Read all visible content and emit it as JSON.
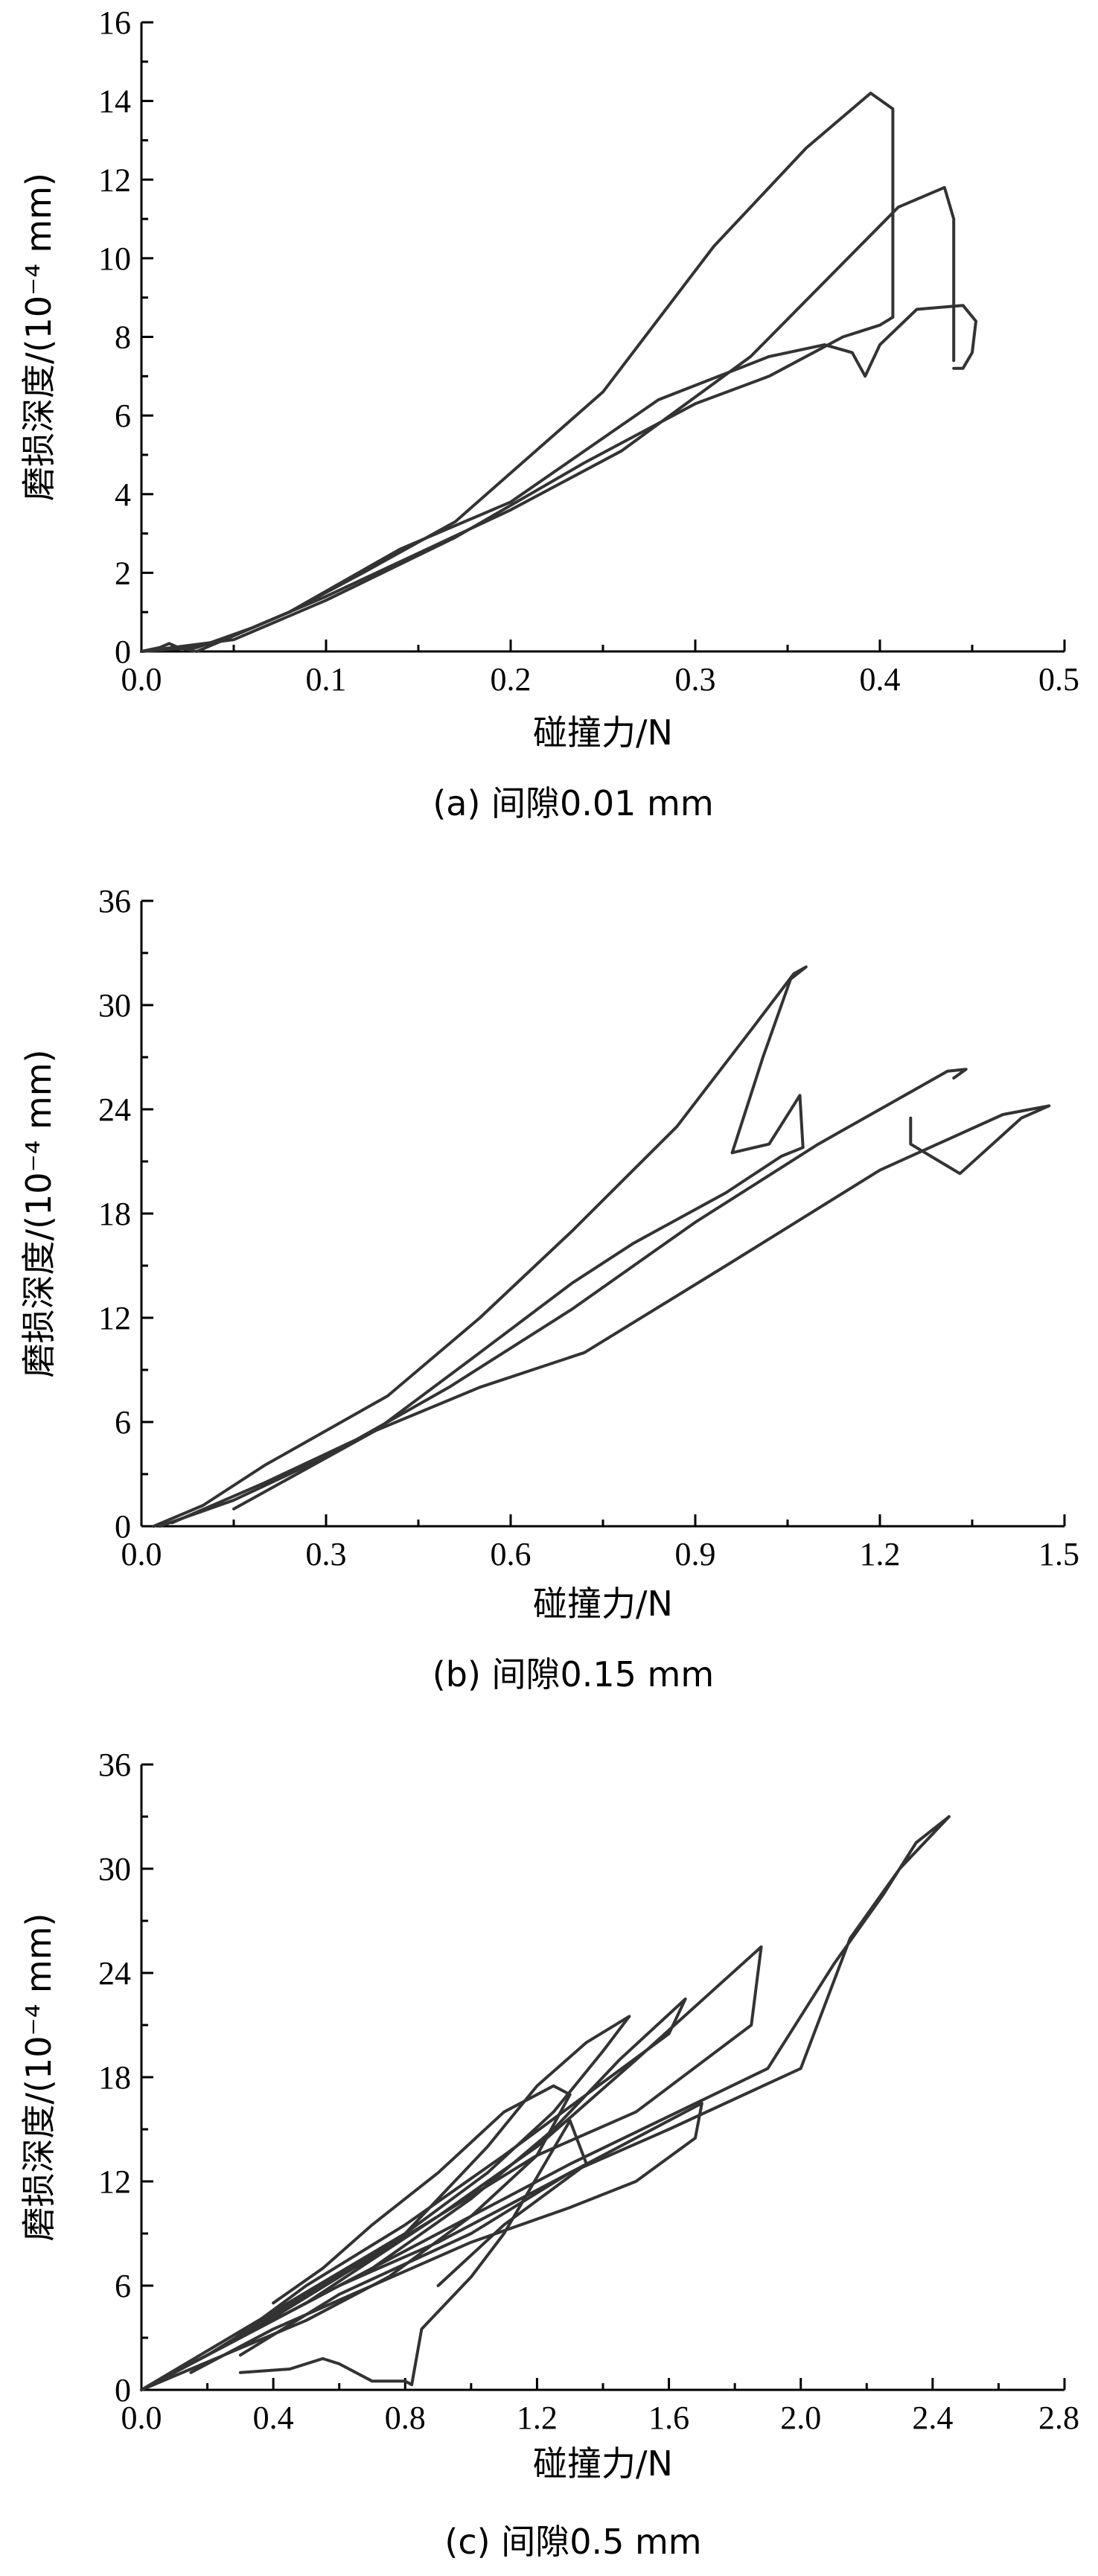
{
  "chart_data": [
    {
      "type": "line",
      "title": "",
      "caption": "(a) 间隙0.01 mm",
      "xlabel": "碰撞力/N",
      "ylabel": "磨损深度/(10⁻⁴ mm)",
      "xlim": [
        0,
        0.5
      ],
      "ylim": [
        0,
        16
      ],
      "xticks": [
        0.0,
        0.1,
        0.2,
        0.3,
        0.4,
        0.5
      ],
      "yticks": [
        0,
        2,
        4,
        6,
        8,
        10,
        12,
        14,
        16
      ],
      "xtick_labels": [
        "0.0",
        "0.1",
        "0.2",
        "0.3",
        "0.4",
        "0.5"
      ],
      "ytick_labels": [
        "0",
        "2",
        "4",
        "6",
        "8",
        "10",
        "12",
        "14",
        "16"
      ],
      "grid": false,
      "series": [
        {
          "x": [
            0,
            0.01,
            0.015,
            0.02,
            0.03,
            0.05,
            0.08,
            0.12,
            0.17,
            0.25,
            0.31,
            0.36,
            0.395,
            0.407,
            0.407,
            0.4
          ],
          "y": [
            0,
            0.1,
            0.2,
            0.1,
            0,
            0.4,
            1.0,
            2.0,
            3.3,
            6.6,
            10.3,
            12.8,
            14.2,
            13.8,
            8.5,
            8.3
          ]
        },
        {
          "x": [
            0,
            0.03,
            0.06,
            0.1,
            0.15,
            0.2,
            0.26,
            0.33,
            0.41,
            0.435,
            0.44,
            0.44
          ],
          "y": [
            0,
            0.1,
            0.6,
            1.4,
            2.5,
            3.6,
            5.1,
            7.5,
            11.3,
            11.8,
            11.0,
            7.4
          ]
        },
        {
          "x": [
            0,
            0.04,
            0.08,
            0.14,
            0.2,
            0.28,
            0.34,
            0.37,
            0.385,
            0.392,
            0.4,
            0.42,
            0.445,
            0.452,
            0.45,
            0.445,
            0.44
          ],
          "y": [
            0,
            0.2,
            1.0,
            2.6,
            3.8,
            6.4,
            7.5,
            7.8,
            7.6,
            7.0,
            7.8,
            8.7,
            8.8,
            8.4,
            7.6,
            7.2,
            7.2
          ]
        },
        {
          "x": [
            0,
            0.05,
            0.1,
            0.17,
            0.24,
            0.3,
            0.34,
            0.38,
            0.4
          ],
          "y": [
            0,
            0.3,
            1.3,
            2.9,
            4.8,
            6.3,
            7.0,
            8.0,
            8.3
          ]
        }
      ]
    },
    {
      "type": "line",
      "title": "",
      "caption": "(b) 间隙0.15 mm",
      "xlabel": "碰撞力/N",
      "ylabel": "磨损深度/(10⁻⁴ mm)",
      "xlim": [
        0,
        1.5
      ],
      "ylim": [
        0,
        36
      ],
      "xticks": [
        0.0,
        0.3,
        0.6,
        0.9,
        1.2,
        1.5
      ],
      "yticks": [
        0,
        6,
        12,
        18,
        24,
        30,
        36
      ],
      "xtick_labels": [
        "0.0",
        "0.3",
        "0.6",
        "0.9",
        "1.2",
        "1.5"
      ],
      "ytick_labels": [
        "0",
        "6",
        "12",
        "18",
        "24",
        "30",
        "36"
      ],
      "grid": false,
      "series": [
        {
          "x": [
            0.02,
            0.1,
            0.2,
            0.4,
            0.55,
            0.7,
            0.87,
            1.0,
            1.06,
            1.08,
            1.055,
            1.01,
            0.96
          ],
          "y": [
            0,
            1.2,
            3.5,
            7.5,
            12.0,
            17.0,
            23.0,
            29.0,
            31.8,
            32.2,
            31.5,
            27.0,
            21.5
          ]
        },
        {
          "x": [
            0.96,
            1.02,
            1.07,
            1.075,
            1.04,
            0.95,
            0.8,
            0.7,
            0.55,
            0.38,
            0.2,
            0.05
          ],
          "y": [
            21.5,
            22.0,
            24.8,
            21.8,
            21.3,
            19.2,
            16.3,
            14.0,
            10.0,
            5.5,
            2.5,
            0.2
          ]
        },
        {
          "x": [
            0.03,
            0.15,
            0.3,
            0.5,
            0.7,
            0.9,
            1.1,
            1.25,
            1.31,
            1.34,
            1.32
          ],
          "y": [
            0,
            1.5,
            4.0,
            8.0,
            12.5,
            17.5,
            22.0,
            25.0,
            26.2,
            26.3,
            25.8
          ]
        },
        {
          "x": [
            1.25,
            1.25,
            1.33,
            1.43,
            1.475,
            1.4,
            1.2,
            0.95,
            0.72,
            0.55,
            0.38,
            0.15
          ],
          "y": [
            23.5,
            22.0,
            20.3,
            23.5,
            24.2,
            23.7,
            20.5,
            15.0,
            10.0,
            8.0,
            5.5,
            1.0
          ]
        }
      ]
    },
    {
      "type": "line",
      "title": "",
      "caption": "(c) 间隙0.5 mm",
      "xlabel": "碰撞力/N",
      "ylabel": "磨损深度/(10⁻⁴ mm)",
      "xlim": [
        0,
        2.8
      ],
      "ylim": [
        0,
        36
      ],
      "xticks": [
        0.0,
        0.4,
        0.8,
        1.2,
        1.6,
        2.0,
        2.4,
        2.8
      ],
      "yticks": [
        0,
        6,
        12,
        18,
        24,
        30,
        36
      ],
      "xtick_labels": [
        "0.0",
        "0.4",
        "0.8",
        "1.2",
        "1.6",
        "2.0",
        "2.4",
        "2.8"
      ],
      "ytick_labels": [
        "0",
        "6",
        "12",
        "18",
        "24",
        "30",
        "36"
      ],
      "grid": false,
      "series": [
        {
          "x": [
            0,
            0.8,
            1.3,
            1.9,
            2.1,
            2.25,
            2.35,
            2.45,
            2.3,
            2.15,
            2.0,
            1.6,
            1.3,
            1.0,
            0.6,
            0.3
          ],
          "y": [
            0,
            8.0,
            13.0,
            18.5,
            24.5,
            28.5,
            31.5,
            33.0,
            30.0,
            26.0,
            18.5,
            15.0,
            12.5,
            9.0,
            5.5,
            2.0
          ]
        },
        {
          "x": [
            0,
            0.5,
            0.9,
            1.2,
            1.5,
            1.88,
            1.85,
            1.5,
            1.2,
            0.9,
            0.6,
            0.3
          ],
          "y": [
            0,
            5.0,
            10.0,
            14.0,
            19.0,
            25.5,
            21.0,
            16.0,
            13.5,
            10.0,
            6.5,
            3.0
          ]
        },
        {
          "x": [
            0,
            0.4,
            0.8,
            1.05,
            1.2,
            1.35,
            1.48,
            1.4,
            1.25,
            1.05,
            0.8,
            0.5,
            0.2
          ],
          "y": [
            0,
            4.5,
            9.0,
            14.0,
            17.5,
            20.0,
            21.5,
            19.5,
            16.0,
            12.5,
            9.0,
            5.5,
            2.0
          ]
        },
        {
          "x": [
            0,
            0.3,
            0.6,
            0.9,
            1.2,
            1.5,
            1.7,
            1.68,
            1.5,
            1.3,
            1.0,
            0.7,
            0.4,
            0.15
          ],
          "y": [
            0,
            3.0,
            6.0,
            8.5,
            11.5,
            14.5,
            16.5,
            14.5,
            12.0,
            10.5,
            8.5,
            6.0,
            3.5,
            1.0
          ]
        },
        {
          "x": [
            0.3,
            0.45,
            0.55,
            0.6,
            0.7,
            0.8,
            0.82,
            0.85,
            1.0,
            1.1,
            1.3,
            1.35,
            1.1,
            0.9
          ],
          "y": [
            1.0,
            1.2,
            1.8,
            1.5,
            0.5,
            0.5,
            0.3,
            3.5,
            6.5,
            9.0,
            15.5,
            13.0,
            9.5,
            6.0
          ]
        },
        {
          "x": [
            0,
            0.35,
            0.7,
            1.0,
            1.25,
            1.45,
            1.65,
            1.6,
            1.35,
            1.1,
            0.8,
            0.5,
            0.25
          ],
          "y": [
            0,
            3.5,
            7.0,
            11.0,
            15.0,
            19.0,
            22.5,
            20.5,
            17.0,
            13.5,
            9.5,
            6.0,
            2.5
          ]
        },
        {
          "x": [
            0,
            0.25,
            0.5,
            0.75,
            1.0,
            1.2,
            1.3,
            1.25,
            1.1,
            0.9,
            0.7,
            0.55,
            0.4
          ],
          "y": [
            0,
            2.0,
            4.0,
            6.5,
            10.0,
            13.5,
            17.0,
            17.5,
            16.0,
            12.5,
            9.5,
            7.0,
            5.0
          ]
        }
      ]
    }
  ]
}
